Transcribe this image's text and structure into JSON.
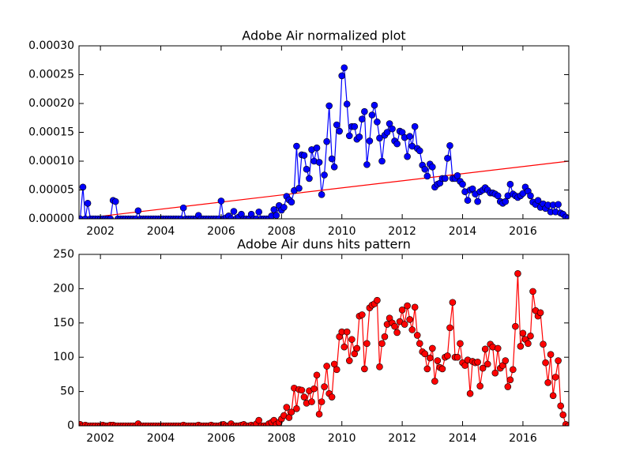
{
  "chart_data": [
    {
      "type": "line",
      "title": "Adobe Air normalized plot",
      "color": "#0000ff",
      "x": [
        2001.33,
        2001.42,
        2001.5,
        2001.58,
        2001.67,
        2001.75,
        2001.83,
        2001.92,
        2002,
        2002.08,
        2002.17,
        2002.25,
        2002.33,
        2002.42,
        2002.5,
        2002.58,
        2002.67,
        2002.75,
        2002.83,
        2002.92,
        2003,
        2003.08,
        2003.17,
        2003.25,
        2003.33,
        2003.42,
        2003.5,
        2003.58,
        2003.67,
        2003.75,
        2003.83,
        2003.92,
        2004,
        2004.08,
        2004.17,
        2004.25,
        2004.33,
        2004.42,
        2004.5,
        2004.58,
        2004.67,
        2004.75,
        2004.83,
        2004.92,
        2005,
        2005.08,
        2005.17,
        2005.25,
        2005.33,
        2005.42,
        2005.5,
        2005.58,
        2005.67,
        2005.75,
        2005.83,
        2005.92,
        2006,
        2006.08,
        2006.17,
        2006.25,
        2006.33,
        2006.42,
        2006.5,
        2006.58,
        2006.67,
        2006.75,
        2006.83,
        2006.92,
        2007,
        2007.08,
        2007.17,
        2007.25,
        2007.33,
        2007.42,
        2007.5,
        2007.58,
        2007.67,
        2007.75,
        2007.83,
        2007.92,
        2008,
        2008.08,
        2008.17,
        2008.25,
        2008.33,
        2008.42,
        2008.5,
        2008.58,
        2008.67,
        2008.75,
        2008.83,
        2008.92,
        2009,
        2009.08,
        2009.17,
        2009.25,
        2009.33,
        2009.42,
        2009.5,
        2009.58,
        2009.67,
        2009.75,
        2009.83,
        2009.92,
        2010,
        2010.08,
        2010.17,
        2010.25,
        2010.33,
        2010.42,
        2010.5,
        2010.58,
        2010.67,
        2010.75,
        2010.83,
        2010.92,
        2011,
        2011.08,
        2011.17,
        2011.25,
        2011.33,
        2011.42,
        2011.5,
        2011.58,
        2011.67,
        2011.75,
        2011.83,
        2011.92,
        2012,
        2012.08,
        2012.17,
        2012.25,
        2012.33,
        2012.42,
        2012.5,
        2012.58,
        2012.67,
        2012.75,
        2012.83,
        2012.92,
        2013,
        2013.08,
        2013.17,
        2013.25,
        2013.33,
        2013.42,
        2013.5,
        2013.58,
        2013.67,
        2013.75,
        2013.83,
        2013.92,
        2014,
        2014.08,
        2014.17,
        2014.25,
        2014.33,
        2014.42,
        2014.5,
        2014.58,
        2014.67,
        2014.75,
        2014.83,
        2014.92,
        2015,
        2015.08,
        2015.17,
        2015.25,
        2015.33,
        2015.42,
        2015.5,
        2015.58,
        2015.67,
        2015.75,
        2015.83,
        2015.92,
        2016,
        2016.08,
        2016.17,
        2016.25,
        2016.33,
        2016.42,
        2016.5,
        2016.58,
        2016.67,
        2016.75,
        2016.83,
        2016.92,
        2017,
        2017.08,
        2017.17,
        2017.25,
        2017.33,
        2017.42,
        2017.5
      ],
      "values": [
        0,
        5.5e-05,
        0,
        2.7e-05,
        0,
        0,
        0,
        0,
        0,
        0,
        0,
        0,
        0,
        3.2e-05,
        3e-05,
        0,
        0,
        0,
        0,
        0,
        0,
        0,
        0,
        1.4e-05,
        0,
        0,
        0,
        0,
        0,
        0,
        0,
        0,
        0,
        0,
        0,
        0,
        0,
        0,
        0,
        0,
        0,
        1.9e-05,
        0,
        0,
        0,
        0,
        0,
        6e-06,
        0,
        0,
        0,
        0,
        0,
        0,
        0,
        0,
        3.1e-05,
        0,
        2e-06,
        5e-06,
        0,
        1.3e-05,
        0,
        3e-06,
        8e-06,
        0,
        0,
        0,
        8e-06,
        0,
        0,
        1.2e-05,
        0,
        0,
        0,
        0,
        5e-06,
        1.6e-05,
        6e-06,
        2.3e-05,
        1.5e-05,
        2e-05,
        3.9e-05,
        3.3e-05,
        2.9e-05,
        4.9e-05,
        0.000126,
        5.3e-05,
        0.000111,
        0.00011,
        8.6e-05,
        7e-05,
        0.00012,
        0.0001,
        0.000123,
        9.8e-05,
        4.2e-05,
        7.6e-05,
        0.000134,
        0.000196,
        0.000104,
        9e-05,
        0.000163,
        0.000152,
        0.000248,
        0.000262,
        0.000199,
        0.000144,
        0.00016,
        0.00016,
        0.000138,
        0.000142,
        0.000173,
        0.000186,
        9.4e-05,
        0.000135,
        0.00018,
        0.000197,
        0.000168,
        0.00014,
        0.0001,
        0.000145,
        0.00015,
        0.000165,
        0.000156,
        0.000135,
        0.00013,
        0.000152,
        0.00015,
        0.000141,
        0.000108,
        0.000143,
        0.000126,
        0.00016,
        0.000122,
        0.000118,
        9.3e-05,
        8.6e-05,
        7.4e-05,
        9.5e-05,
        9e-05,
        5.5e-05,
        6e-05,
        6.2e-05,
        7e-05,
        7e-05,
        0.000105,
        0.000127,
        7e-05,
        7e-05,
        7.5e-05,
        6.5e-05,
        6e-05,
        4.7e-05,
        3.2e-05,
        5e-05,
        5.2e-05,
        4.3e-05,
        3e-05,
        4.7e-05,
        5e-05,
        5.4e-05,
        5e-05,
        4.5e-05,
        4.5e-05,
        4.3e-05,
        4e-05,
        3e-05,
        2.7e-05,
        3e-05,
        4e-05,
        6e-05,
        4.3e-05,
        4e-05,
        3.7e-05,
        4e-05,
        4.4e-05,
        5.5e-05,
        4.8e-05,
        4e-05,
        2.9e-05,
        2.5e-05,
        3.2e-05,
        2e-05,
        2.6e-05,
        1.8e-05,
        2.4e-05,
        1.2e-05,
        2.4e-05,
        1.2e-05,
        2.5e-05,
        1e-05,
        8e-06,
        3e-06,
        1e-06
      ],
      "trend_line": {
        "color": "#ff0000",
        "x": [
          2001.29,
          2017.52
        ],
        "values": [
          0,
          0.0001
        ]
      },
      "xlim": [
        2001.29,
        2017.52
      ],
      "xticks": [
        2002,
        2004,
        2006,
        2008,
        2010,
        2012,
        2014,
        2016
      ],
      "ylim": [
        0,
        0.0003
      ],
      "yticks": [
        {
          "value": 0,
          "label": "0.00000"
        },
        {
          "value": 5e-05,
          "label": "0.00005"
        },
        {
          "value": 0.0001,
          "label": "0.00010"
        },
        {
          "value": 0.00015,
          "label": "0.00015"
        },
        {
          "value": 0.0002,
          "label": "0.00020"
        },
        {
          "value": 0.00025,
          "label": "0.00025"
        },
        {
          "value": 0.0003,
          "label": "0.00030"
        }
      ]
    },
    {
      "type": "line",
      "title": "Adobe Air duns hits pattern",
      "color": "#ff0000",
      "x": [
        2001.33,
        2001.42,
        2001.5,
        2001.58,
        2001.67,
        2001.75,
        2001.83,
        2001.92,
        2002,
        2002.08,
        2002.17,
        2002.25,
        2002.33,
        2002.42,
        2002.5,
        2002.58,
        2002.67,
        2002.75,
        2002.83,
        2002.92,
        2003,
        2003.08,
        2003.17,
        2003.25,
        2003.33,
        2003.42,
        2003.5,
        2003.58,
        2003.67,
        2003.75,
        2003.83,
        2003.92,
        2004,
        2004.08,
        2004.17,
        2004.25,
        2004.33,
        2004.42,
        2004.5,
        2004.58,
        2004.67,
        2004.75,
        2004.83,
        2004.92,
        2005,
        2005.08,
        2005.17,
        2005.25,
        2005.33,
        2005.42,
        2005.5,
        2005.58,
        2005.67,
        2005.75,
        2005.83,
        2005.92,
        2006,
        2006.08,
        2006.17,
        2006.25,
        2006.33,
        2006.42,
        2006.5,
        2006.58,
        2006.67,
        2006.75,
        2006.83,
        2006.92,
        2007,
        2007.08,
        2007.17,
        2007.25,
        2007.33,
        2007.42,
        2007.5,
        2007.58,
        2007.67,
        2007.75,
        2007.83,
        2007.92,
        2008,
        2008.08,
        2008.17,
        2008.25,
        2008.33,
        2008.42,
        2008.5,
        2008.58,
        2008.67,
        2008.75,
        2008.83,
        2008.92,
        2009,
        2009.08,
        2009.17,
        2009.25,
        2009.33,
        2009.42,
        2009.5,
        2009.58,
        2009.67,
        2009.75,
        2009.83,
        2009.92,
        2010,
        2010.08,
        2010.17,
        2010.25,
        2010.33,
        2010.42,
        2010.5,
        2010.58,
        2010.67,
        2010.75,
        2010.83,
        2010.92,
        2011,
        2011.08,
        2011.17,
        2011.25,
        2011.33,
        2011.42,
        2011.5,
        2011.58,
        2011.67,
        2011.75,
        2011.83,
        2011.92,
        2012,
        2012.08,
        2012.17,
        2012.25,
        2012.33,
        2012.42,
        2012.5,
        2012.58,
        2012.67,
        2012.75,
        2012.83,
        2012.92,
        2013,
        2013.08,
        2013.17,
        2013.25,
        2013.33,
        2013.42,
        2013.5,
        2013.58,
        2013.67,
        2013.75,
        2013.83,
        2013.92,
        2014,
        2014.08,
        2014.17,
        2014.25,
        2014.33,
        2014.42,
        2014.5,
        2014.58,
        2014.67,
        2014.75,
        2014.83,
        2014.92,
        2015,
        2015.08,
        2015.17,
        2015.25,
        2015.33,
        2015.42,
        2015.5,
        2015.58,
        2015.67,
        2015.75,
        2015.83,
        2015.92,
        2016,
        2016.08,
        2016.17,
        2016.25,
        2016.33,
        2016.42,
        2016.5,
        2016.58,
        2016.67,
        2016.75,
        2016.83,
        2016.92,
        2017,
        2017.08,
        2017.17,
        2017.25,
        2017.33,
        2017.42,
        2017.5
      ],
      "values": [
        2,
        0,
        1,
        0,
        0,
        0,
        0,
        0,
        0,
        1,
        0,
        0,
        1,
        1,
        0,
        0,
        0,
        0,
        0,
        0,
        0,
        0,
        0,
        3,
        0,
        0,
        0,
        0,
        0,
        0,
        0,
        0,
        0,
        0,
        0,
        0,
        0,
        0,
        0,
        0,
        0,
        1,
        0,
        0,
        0,
        0,
        0,
        1,
        0,
        0,
        0,
        0,
        1,
        0,
        0,
        0,
        1,
        2,
        0,
        0,
        3,
        0,
        0,
        0,
        1,
        2,
        0,
        0,
        1,
        0,
        3,
        8,
        0,
        0,
        0,
        3,
        5,
        8,
        2,
        5,
        10,
        15,
        27,
        12,
        20,
        55,
        25,
        53,
        52,
        42,
        33,
        51,
        35,
        54,
        74,
        17,
        35,
        57,
        87,
        47,
        42,
        90,
        82,
        130,
        137,
        115,
        137,
        95,
        126,
        105,
        113,
        160,
        162,
        83,
        120,
        172,
        176,
        178,
        183,
        86,
        120,
        130,
        148,
        157,
        150,
        145,
        136,
        152,
        169,
        148,
        175,
        155,
        140,
        173,
        132,
        120,
        108,
        105,
        83,
        99,
        113,
        65,
        95,
        85,
        83,
        100,
        102,
        143,
        180,
        100,
        100,
        120,
        92,
        88,
        96,
        47,
        94,
        92,
        93,
        58,
        84,
        112,
        90,
        119,
        115,
        77,
        113,
        84,
        88,
        95,
        57,
        67,
        82,
        145,
        222,
        116,
        135,
        126,
        120,
        131,
        196,
        168,
        160,
        165,
        119,
        92,
        63,
        104,
        44,
        71,
        95,
        29,
        16,
        2,
        0
      ],
      "xlim": [
        2001.29,
        2017.52
      ],
      "xticks": [
        2002,
        2004,
        2006,
        2008,
        2010,
        2012,
        2014,
        2016
      ],
      "ylim": [
        0,
        250
      ],
      "yticks": [
        0,
        50,
        100,
        150,
        200,
        250
      ]
    }
  ]
}
